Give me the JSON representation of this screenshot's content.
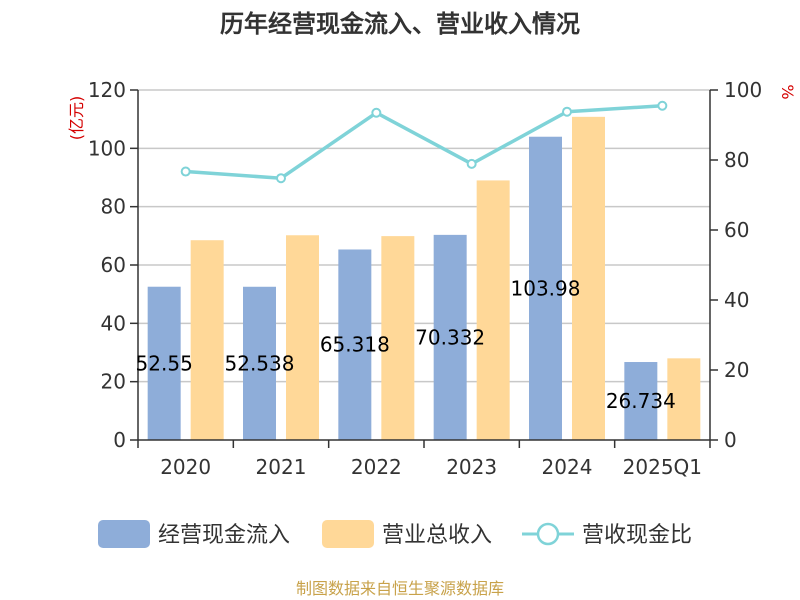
{
  "chart_data": {
    "type": "bar",
    "title": "历年经营现金流入、营业收入情况",
    "categories": [
      "2020",
      "2021",
      "2022",
      "2023",
      "2024",
      "2025Q1"
    ],
    "left_axis": {
      "unit": "(亿元)",
      "ylim": [
        0,
        120
      ],
      "ticks": [
        0,
        20,
        40,
        60,
        80,
        100,
        120
      ]
    },
    "right_axis": {
      "unit": "%",
      "ylim": [
        0,
        100
      ],
      "ticks": [
        0,
        20,
        40,
        60,
        80,
        100
      ]
    },
    "series": [
      {
        "name": "经营现金流入",
        "type": "bar",
        "axis": "left",
        "color": "#8eadd9",
        "values": [
          52.55,
          52.538,
          65.318,
          70.332,
          103.98,
          26.734
        ],
        "data_labels": [
          "52.55",
          "52.538",
          "65.318",
          "70.332",
          "103.98",
          "26.734"
        ]
      },
      {
        "name": "营业总收入",
        "type": "bar",
        "axis": "left",
        "color": "#ffd898",
        "values": [
          68.5,
          70.2,
          69.9,
          89.0,
          110.8,
          28.0
        ]
      },
      {
        "name": "营收现金比",
        "type": "line",
        "axis": "right",
        "color": "#7fd3d8",
        "values": [
          76.7,
          74.8,
          93.5,
          78.9,
          93.8,
          95.5
        ]
      }
    ],
    "grid": true,
    "legend_position": "bottom"
  },
  "source": "制图数据来自恒生聚源数据库"
}
